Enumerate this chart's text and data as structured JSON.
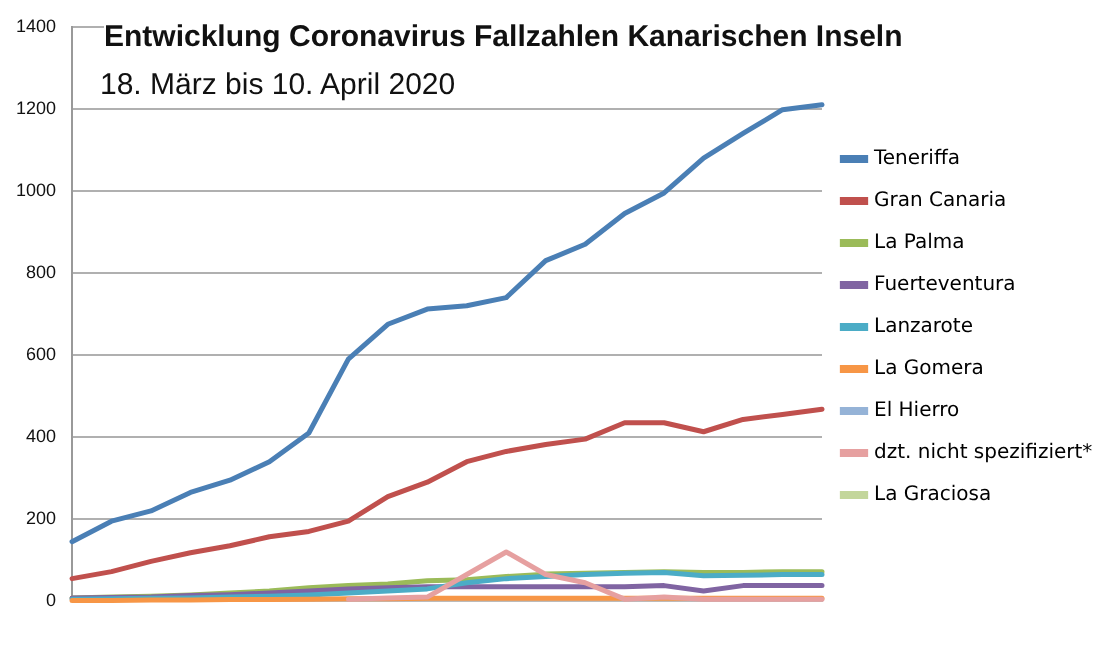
{
  "chart_data": {
    "type": "line",
    "title": "Entwicklung Coronavirus Fallzahlen Kanarischen Inseln",
    "subtitle": "18. März bis 10. April 2020",
    "categories": [
      null,
      null,
      null,
      null,
      null,
      null,
      null,
      null,
      null,
      null,
      null,
      null,
      null,
      null,
      null,
      null,
      null,
      null,
      null,
      null
    ],
    "series": [
      {
        "name": "Teneriffa",
        "color": "#4a7fb5",
        "values": [
          145,
          195,
          220,
          265,
          295,
          340,
          410,
          590,
          675,
          712,
          720,
          740,
          830,
          870,
          945,
          995,
          1080,
          1140,
          1198,
          1210
        ]
      },
      {
        "name": "Gran Canaria",
        "color": "#c0504d",
        "values": [
          55,
          72,
          97,
          118,
          135,
          157,
          170,
          195,
          255,
          290,
          340,
          365,
          382,
          395,
          435,
          435,
          413,
          443,
          455,
          468
        ]
      },
      {
        "name": "La Palma",
        "color": "#9bbb59",
        "values": [
          8,
          10,
          12,
          15,
          20,
          25,
          33,
          38,
          42,
          50,
          52,
          60,
          66,
          68,
          70,
          72,
          70,
          70,
          72,
          72
        ]
      },
      {
        "name": "Fuerteventura",
        "color": "#8064a2",
        "values": [
          8,
          9,
          10,
          14,
          16,
          20,
          25,
          30,
          33,
          35,
          35,
          35,
          35,
          35,
          35,
          38,
          25,
          38,
          38,
          38
        ]
      },
      {
        "name": "Lanzarote",
        "color": "#4bacc6",
        "values": [
          5,
          6,
          7,
          8,
          10,
          12,
          15,
          20,
          25,
          30,
          45,
          55,
          60,
          65,
          68,
          70,
          62,
          63,
          65,
          65
        ]
      },
      {
        "name": "La Gomera",
        "color": "#f79646",
        "values": [
          2,
          2,
          3,
          3,
          4,
          4,
          5,
          6,
          6,
          7,
          7,
          7,
          7,
          7,
          7,
          7,
          7,
          7,
          7,
          7
        ]
      },
      {
        "name": "El Hierro",
        "color": "#95b3d7",
        "values": [
          null,
          null,
          null,
          null,
          null,
          null,
          null,
          null,
          null,
          null,
          null,
          null,
          null,
          null,
          null,
          null,
          null,
          null,
          null,
          null
        ]
      },
      {
        "name": "dzt. nicht spezifiziert*",
        "color": "#e6a0a0",
        "values": [
          null,
          null,
          null,
          null,
          null,
          null,
          null,
          5,
          8,
          10,
          65,
          120,
          65,
          45,
          5,
          10,
          5,
          5,
          5,
          5
        ]
      },
      {
        "name": "La Graciosa",
        "color": "#c3d69b",
        "values": [
          null,
          null,
          null,
          null,
          null,
          null,
          null,
          null,
          null,
          null,
          null,
          null,
          null,
          null,
          null,
          null,
          null,
          null,
          null,
          null
        ]
      }
    ],
    "ylim": [
      0,
      1400
    ],
    "yticks": [
      0,
      200,
      400,
      600,
      800,
      1000,
      1200,
      1400
    ],
    "grid": "y",
    "legend": "right",
    "marker": "none",
    "line_style": "solid"
  }
}
